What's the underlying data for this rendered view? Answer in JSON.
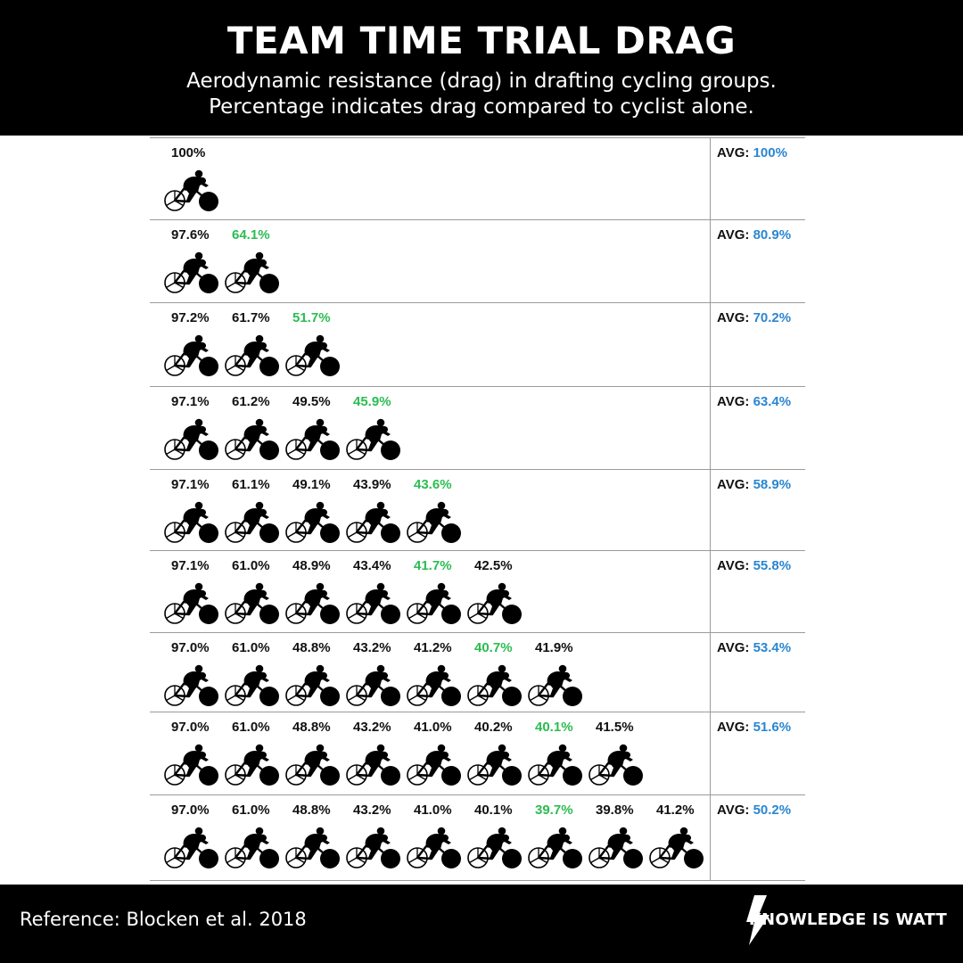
{
  "header": {
    "title": "TEAM TIME TRIAL DRAG",
    "subtitle_line1": "Aerodynamic resistance (drag) in drafting cycling groups.",
    "subtitle_line2": "Percentage indicates drag compared to cyclist alone."
  },
  "avg_label": "AVG:",
  "icons": {
    "rider": "cyclist-icon",
    "logo": "lightning-bolt-icon"
  },
  "colors": {
    "best": "#2bbd52",
    "avg": "#2a86d1",
    "text": "#111111",
    "bar": "#000000"
  },
  "rows": [
    {
      "values": [
        "100%"
      ],
      "best": -1,
      "avg": "100%"
    },
    {
      "values": [
        "97.6%",
        "64.1%"
      ],
      "best": 1,
      "avg": "80.9%"
    },
    {
      "values": [
        "97.2%",
        "61.7%",
        "51.7%"
      ],
      "best": 2,
      "avg": "70.2%"
    },
    {
      "values": [
        "97.1%",
        "61.2%",
        "49.5%",
        "45.9%"
      ],
      "best": 3,
      "avg": "63.4%"
    },
    {
      "values": [
        "97.1%",
        "61.1%",
        "49.1%",
        "43.9%",
        "43.6%"
      ],
      "best": 4,
      "avg": "58.9%"
    },
    {
      "values": [
        "97.1%",
        "61.0%",
        "48.9%",
        "43.4%",
        "41.7%",
        "42.5%"
      ],
      "best": 4,
      "avg": "55.8%"
    },
    {
      "values": [
        "97.0%",
        "61.0%",
        "48.8%",
        "43.2%",
        "41.2%",
        "40.7%",
        "41.9%"
      ],
      "best": 5,
      "avg": "53.4%"
    },
    {
      "values": [
        "97.0%",
        "61.0%",
        "48.8%",
        "43.2%",
        "41.0%",
        "40.2%",
        "40.1%",
        "41.5%"
      ],
      "best": 6,
      "avg": "51.6%"
    },
    {
      "values": [
        "97.0%",
        "61.0%",
        "48.8%",
        "43.2%",
        "41.0%",
        "40.1%",
        "39.7%",
        "39.8%",
        "41.2%"
      ],
      "best": 6,
      "avg": "50.2%"
    }
  ],
  "footer": {
    "reference": "Reference: Blocken et al. 2018",
    "brand": "KNOWLEDGE IS WATT"
  }
}
